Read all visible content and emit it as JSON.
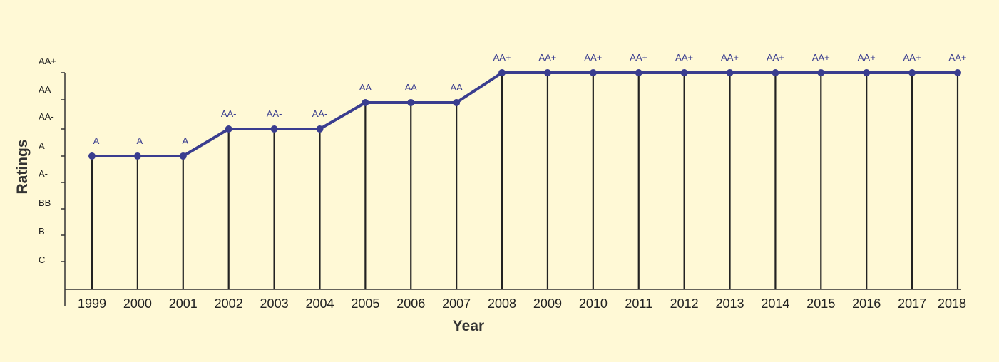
{
  "chart_data": {
    "type": "line",
    "title": "",
    "xlabel": "Year",
    "ylabel": "Ratings",
    "y_categories": [
      "C",
      "B-",
      "BB",
      "A-",
      "A",
      "AA-",
      "AA",
      "AA+"
    ],
    "categories": [
      "1999",
      "2000",
      "2001",
      "2002",
      "2003",
      "2004",
      "2005",
      "2006",
      "2007",
      "2008",
      "2009",
      "2010",
      "2011",
      "2012",
      "2013",
      "2014",
      "2015",
      "2016",
      "2017",
      "2018"
    ],
    "series": [
      {
        "values": [
          "A",
          "A",
          "A",
          "AA-",
          "AA-",
          "AA-",
          "AA",
          "AA",
          "AA",
          "AA+",
          "AA+",
          "AA+",
          "AA+",
          "AA+",
          "AA+",
          "AA+",
          "AA+",
          "AA+",
          "AA+",
          "AA+"
        ]
      }
    ],
    "data_labels": [
      "A",
      "A",
      "A",
      "AA-",
      "AA-",
      "AA-",
      "AA",
      "AA",
      "AA",
      "AA+",
      "AA+",
      "AA+",
      "AA+",
      "AA+",
      "AA+",
      "AA+",
      "AA+",
      "AA+",
      "AA+",
      "AA+"
    ],
    "grid": false,
    "legend": "none",
    "colors": {
      "background": "#fff9d6",
      "line": "#3a3d8f",
      "stem": "#222222",
      "axis": "#333333",
      "label": "#3a3d8f"
    }
  }
}
